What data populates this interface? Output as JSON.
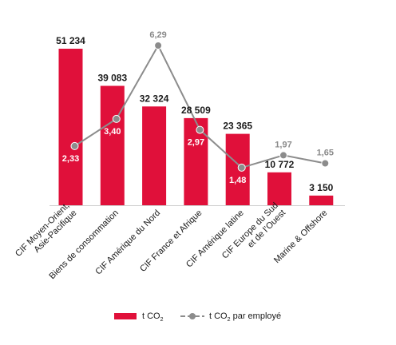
{
  "colors": {
    "bar": "#e0103a",
    "line": "#8c8c8c",
    "marker": "#8c8c8c",
    "axis": "#d0d0d0"
  },
  "legend": {
    "position": "bottom"
  },
  "chart_data": {
    "type": "bar",
    "title": "",
    "xlabel": "",
    "ylabel": "",
    "categories": [
      [
        "CIF Moyen-Orient,",
        "Asie-Pacifique"
      ],
      [
        "Biens de consommation"
      ],
      [
        "CIF Amérique du Nord"
      ],
      [
        "CIF France et Afrique"
      ],
      [
        "CIF Amérique latine"
      ],
      [
        "CIF Europe du Sud",
        "et de l’Ouest"
      ],
      [
        "Marine & Offshore"
      ]
    ],
    "series": [
      {
        "name_parts": [
          "t CO",
          "2",
          ""
        ],
        "kind": "bar",
        "axis": "left",
        "values": [
          51234,
          39083,
          32324,
          28509,
          23365,
          10772,
          3150
        ],
        "labels": [
          "51 234",
          "39 083",
          "32 324",
          "28 509",
          "23 365",
          "10 772",
          "3 150"
        ]
      },
      {
        "name_parts": [
          "t CO",
          "2",
          " par employé"
        ],
        "kind": "line",
        "axis": "right",
        "values": [
          2.33,
          3.4,
          6.29,
          2.97,
          1.48,
          1.97,
          1.65
        ],
        "labels": [
          "2,33",
          "3,40",
          "6,29",
          "2,97",
          "1,48",
          "1,97",
          "1,65"
        ]
      }
    ],
    "ylim_bars": [
      0,
      51234
    ],
    "ylim_line": [
      0,
      6.29
    ]
  }
}
